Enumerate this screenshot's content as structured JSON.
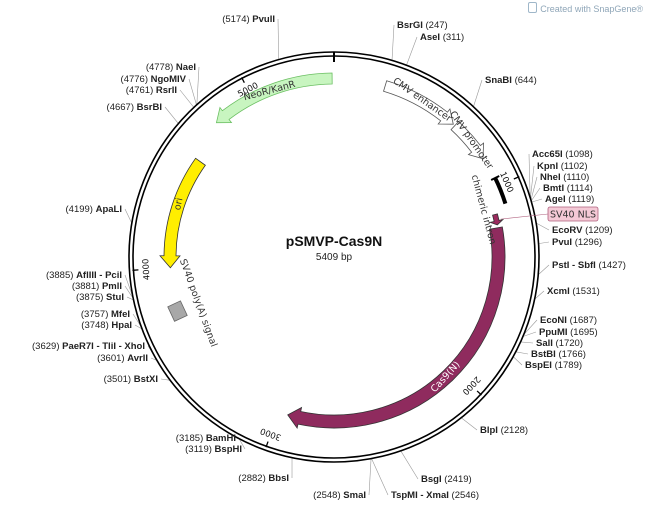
{
  "plasmid": {
    "name": "pSMVP-Cas9N",
    "size_label": "5409 bp",
    "length": 5409
  },
  "watermark": "Created with SnapGene®",
  "ticks": [
    {
      "label": "1000",
      "pos": 1000
    },
    {
      "label": "2000",
      "pos": 2000
    },
    {
      "label": "3000",
      "pos": 3000
    },
    {
      "label": "4000",
      "pos": 4000
    },
    {
      "label": "5000",
      "pos": 5000
    }
  ],
  "features": [
    {
      "name": "CMV enhancer",
      "start": 250,
      "end": 630,
      "color": "#ffffff",
      "type": "arrow",
      "dir": 1
    },
    {
      "name": "CMV promoter",
      "start": 640,
      "end": 850,
      "color": "#ffffff",
      "type": "arrow",
      "dir": 1
    },
    {
      "name": "chimeric intron",
      "start": 960,
      "end": 1090,
      "color": "#000000",
      "type": "bar"
    },
    {
      "name": "SV40 NLS",
      "start": 1130,
      "end": 1185,
      "color": "#9b2a5e",
      "type": "arrow",
      "dir": 1
    },
    {
      "name": "Cas9(N)",
      "start": 1200,
      "end": 2950,
      "color": "#8f2b5e",
      "type": "arrow",
      "dir": 1
    },
    {
      "name": "SV40 poly(A) signal",
      "start": 3700,
      "end": 3830,
      "color": "#a8a8a8",
      "type": "box"
    },
    {
      "name": "ori",
      "start": 4000,
      "end": 4590,
      "color": "#ffee00",
      "type": "arrow",
      "dir": -1
    },
    {
      "name": "NeoR/KanR",
      "start": 4790,
      "end": 5400,
      "color": "#c8f5c0",
      "type": "arrow",
      "dir": -1
    }
  ],
  "sites": [
    {
      "name": "BsrGI",
      "pos": "(247)"
    },
    {
      "name": "AseI",
      "pos": "(311)"
    },
    {
      "name": "SnaBI",
      "pos": "(644)"
    },
    {
      "name": "Acc65I",
      "pos": "(1098)"
    },
    {
      "name": "KpnI",
      "pos": "(1102)"
    },
    {
      "name": "NheI",
      "pos": "(1110)"
    },
    {
      "name": "BmtI",
      "pos": "(1114)"
    },
    {
      "name": "AgeI",
      "pos": "(1119)"
    },
    {
      "name": "EcoRV",
      "pos": "(1209)"
    },
    {
      "name": "PvuI",
      "pos": "(1296)"
    },
    {
      "name": "PstI - SbfI",
      "pos": "(1427)"
    },
    {
      "name": "XcmI",
      "pos": "(1531)"
    },
    {
      "name": "EcoNI",
      "pos": "(1687)"
    },
    {
      "name": "PpuMI",
      "pos": "(1695)"
    },
    {
      "name": "SalI",
      "pos": "(1720)"
    },
    {
      "name": "BstBI",
      "pos": "(1766)"
    },
    {
      "name": "BspEI",
      "pos": "(1789)"
    },
    {
      "name": "BlpI",
      "pos": "(2128)"
    },
    {
      "name": "BsgI",
      "pos": "(2419)"
    },
    {
      "name": "TspMI - XmaI",
      "pos": "(2546)"
    },
    {
      "name": "SmaI",
      "pos": "(2548)"
    },
    {
      "name": "BbsI",
      "pos": "(2882)"
    },
    {
      "name": "BspHI",
      "pos": "(3119)"
    },
    {
      "name": "BamHI",
      "pos": "(3185)"
    },
    {
      "name": "BstXI",
      "pos": "(3501)"
    },
    {
      "name": "AvrII",
      "pos": "(3601)"
    },
    {
      "name": "PaeR7I - TliI - XhoI",
      "pos": "(3629)"
    },
    {
      "name": "HpaI",
      "pos": "(3748)"
    },
    {
      "name": "MfeI",
      "pos": "(3757)"
    },
    {
      "name": "StuI",
      "pos": "(3875)"
    },
    {
      "name": "PmlI",
      "pos": "(3881)"
    },
    {
      "name": "AflIII - PciI",
      "pos": "(3885)"
    },
    {
      "name": "ApaLI",
      "pos": "(4199)"
    },
    {
      "name": "BsrBI",
      "pos": "(4667)"
    },
    {
      "name": "RsrII",
      "pos": "(4761)"
    },
    {
      "name": "NgoMIV",
      "pos": "(4776)"
    },
    {
      "name": "NaeI",
      "pos": "(4778)"
    },
    {
      "name": "PvuII",
      "pos": "(5174)"
    }
  ]
}
